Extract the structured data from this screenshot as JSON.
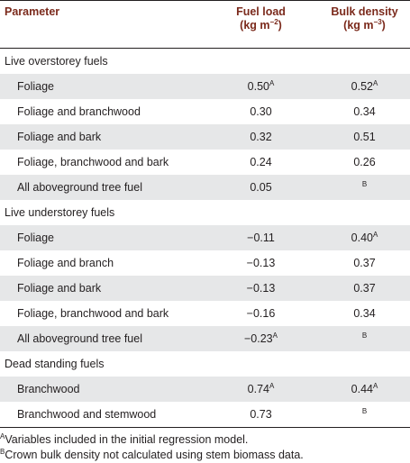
{
  "header": {
    "parameter": "Parameter",
    "fuel_load": "Fuel load",
    "fuel_load_unit": "(kg m−2)",
    "bulk_density": "Bulk density",
    "bulk_density_unit": "(kg m−3)"
  },
  "groups": [
    {
      "title": "Live overstorey fuels",
      "rows": [
        {
          "name": "Foliage",
          "fuel_load": "0.50",
          "fuel_load_sup": "A",
          "bulk": "0.52",
          "bulk_sup": "A"
        },
        {
          "name": "Foliage and branchwood",
          "fuel_load": "0.30",
          "fuel_load_sup": "",
          "bulk": "0.34",
          "bulk_sup": ""
        },
        {
          "name": "Foliage and bark",
          "fuel_load": "0.32",
          "fuel_load_sup": "",
          "bulk": "0.51",
          "bulk_sup": ""
        },
        {
          "name": "Foliage, branchwood and bark",
          "fuel_load": "0.24",
          "fuel_load_sup": "",
          "bulk": "0.26",
          "bulk_sup": ""
        },
        {
          "name": "All aboveground tree fuel",
          "fuel_load": "0.05",
          "fuel_load_sup": "",
          "bulk": "",
          "bulk_sup": "B"
        }
      ]
    },
    {
      "title": "Live understorey fuels",
      "rows": [
        {
          "name": "Foliage",
          "fuel_load": "−0.11",
          "fuel_load_sup": "",
          "bulk": "0.40",
          "bulk_sup": "A"
        },
        {
          "name": "Foliage and branch",
          "fuel_load": "−0.13",
          "fuel_load_sup": "",
          "bulk": "0.37",
          "bulk_sup": ""
        },
        {
          "name": "Foliage and bark",
          "fuel_load": "−0.13",
          "fuel_load_sup": "",
          "bulk": "0.37",
          "bulk_sup": ""
        },
        {
          "name": "Foliage, branchwood and bark",
          "fuel_load": "−0.16",
          "fuel_load_sup": "",
          "bulk": "0.34",
          "bulk_sup": ""
        },
        {
          "name": "All aboveground tree fuel",
          "fuel_load": "−0.23",
          "fuel_load_sup": "A",
          "bulk": "",
          "bulk_sup": "B"
        }
      ]
    },
    {
      "title": "Dead standing fuels",
      "rows": [
        {
          "name": "Branchwood",
          "fuel_load": "0.74",
          "fuel_load_sup": "A",
          "bulk": "0.44",
          "bulk_sup": "A"
        },
        {
          "name": "Branchwood and stemwood",
          "fuel_load": "0.73",
          "fuel_load_sup": "",
          "bulk": "",
          "bulk_sup": "B"
        }
      ]
    }
  ],
  "footnotes": [
    {
      "mark": "A",
      "text": "Variables included in the initial regression model."
    },
    {
      "mark": "B",
      "text": "Crown bulk density not calculated using stem biomass data."
    }
  ],
  "colors": {
    "header_text": "#7b2a1c",
    "row_shade": "#e6e7e8",
    "rule": "#231f20"
  }
}
